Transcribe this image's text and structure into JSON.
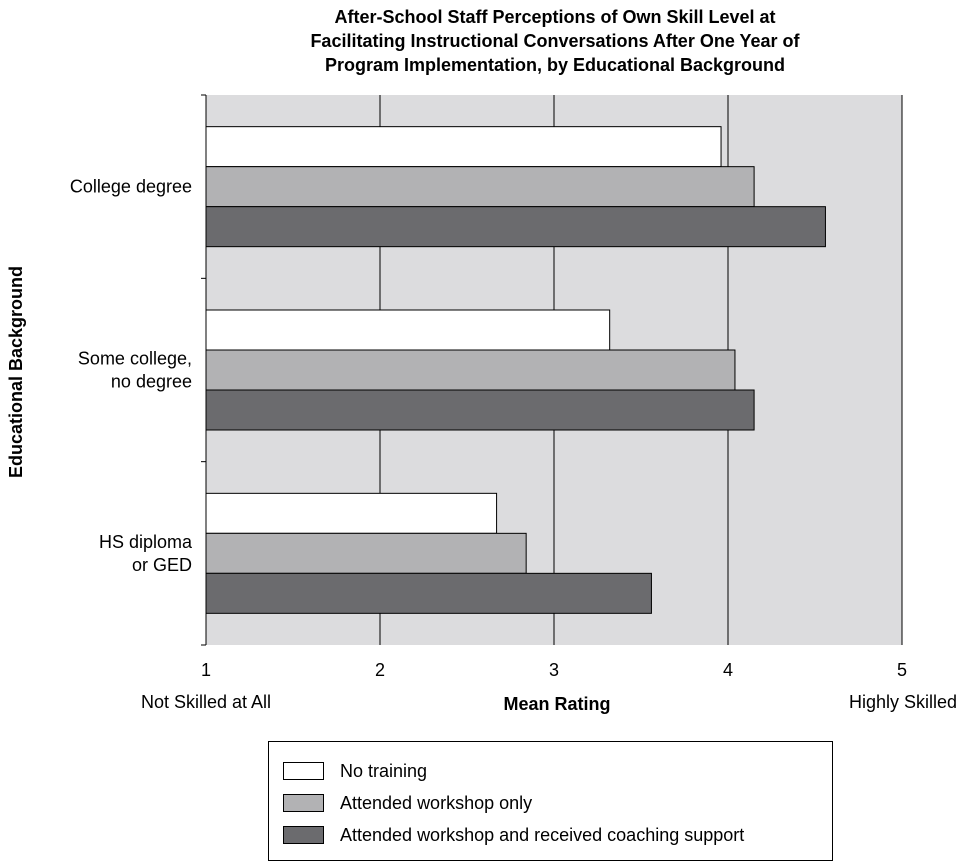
{
  "chart_data": {
    "type": "bar",
    "orientation": "horizontal",
    "title": "After-School Staff Perceptions of Own Skill Level at\nFacilitating Instructional Conversations After One Year of\nProgram  Implementation, by Educational Background",
    "xlabel": "Mean Rating",
    "ylabel": "Educational Background",
    "xlim": [
      1,
      5
    ],
    "x_ticks": [
      "1",
      "2",
      "3",
      "4",
      "5"
    ],
    "x_end_labels": {
      "low": "Not Skilled at All",
      "high": "Highly Skilled"
    },
    "categories": [
      "College degree",
      "Some college,\nno degree",
      "HS diploma\nor GED"
    ],
    "series": [
      {
        "name": "No training",
        "color": "#ffffff",
        "values": [
          3.96,
          3.32,
          2.67
        ]
      },
      {
        "name": "Attended workshop only",
        "color": "#b2b2b4",
        "values": [
          4.15,
          4.04,
          2.84
        ]
      },
      {
        "name": "Attended workshop and received coaching support",
        "color": "#6b6b6e",
        "values": [
          4.56,
          4.15,
          3.56
        ]
      }
    ],
    "grid": true,
    "plot_background": "#dcdcde",
    "legend_position": "bottom"
  }
}
